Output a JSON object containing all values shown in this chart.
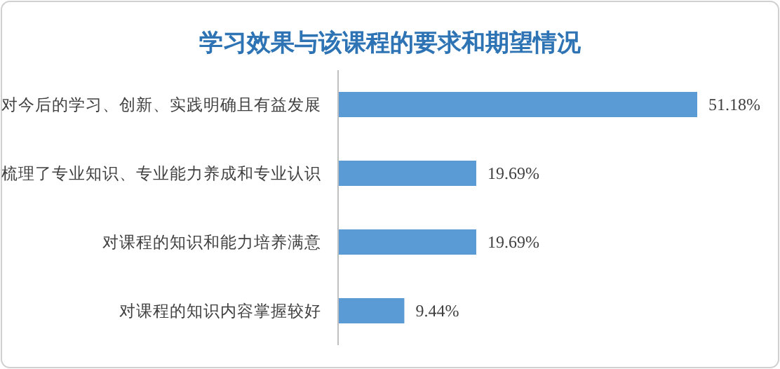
{
  "chart_data": {
    "type": "bar",
    "orientation": "horizontal",
    "title": "学习效果与该课程的要求和期望情况",
    "categories": [
      "对今后的学习、创新、实践明确且有益发展",
      "梳理了专业知识、专业能力养成和专业认识",
      "对课程的知识和能力培养满意",
      "对课程的知识内容掌握较好"
    ],
    "values": [
      51.18,
      19.69,
      19.69,
      9.44
    ],
    "value_labels": [
      "51.18%",
      "19.69%",
      "19.69%",
      "9.44%"
    ],
    "color": "#5b9bd5"
  }
}
